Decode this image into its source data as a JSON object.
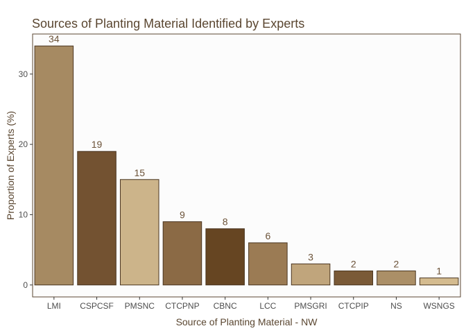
{
  "chart_data": {
    "type": "bar",
    "title": "Sources of Planting Material Identified by Experts",
    "xlabel": "Source of Planting Material - NW",
    "ylabel": "Proportion of Experts (%)",
    "categories": [
      "LMI",
      "CSPCSF",
      "PMSNC",
      "CTCPNP",
      "CBNC",
      "LCC",
      "PMSGRI",
      "CTCPIP",
      "NS",
      "WSNGS"
    ],
    "values": [
      34,
      19,
      15,
      9,
      8,
      6,
      3,
      2,
      2,
      1
    ],
    "data_labels": [
      "34",
      "19",
      "15",
      "9",
      "8",
      "6",
      "3",
      "2",
      "2",
      "1"
    ],
    "colors": [
      "#a68a62",
      "#735231",
      "#ccb48a",
      "#8b6a45",
      "#664522",
      "#9b7b54",
      "#c0a57c",
      "#7a5a37",
      "#ab8f67",
      "#d4bb8f"
    ],
    "bar_border_color": "#4a3520",
    "ylim": [
      -1.7,
      35.7
    ],
    "yticks": [
      0,
      10,
      20,
      30
    ],
    "ytick_labels": [
      "0",
      "10",
      "20",
      "30"
    ],
    "grid": false,
    "panel_background": "#fcfcfc",
    "panel_border_color": "#5a4630"
  }
}
